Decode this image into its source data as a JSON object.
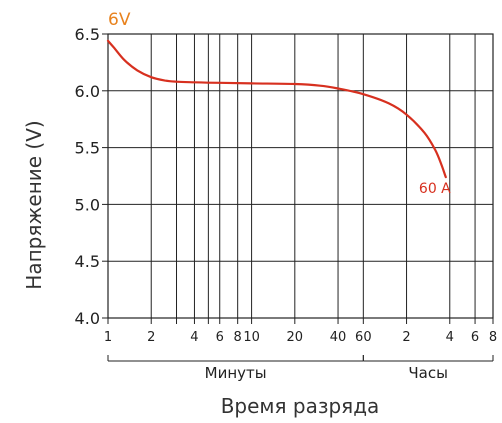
{
  "chart_data": {
    "type": "line",
    "title": "6V",
    "xlabel": "Время разряда",
    "ylabel": "Напряжение (V)",
    "ylim": [
      4.0,
      6.5
    ],
    "yticks": [
      "4.0",
      "4.5",
      "5.0",
      "5.5",
      "6.0",
      "6.5"
    ],
    "xticks": [
      {
        "label": "1",
        "minutes": 1
      },
      {
        "label": "2",
        "minutes": 2
      },
      {
        "label": "4",
        "minutes": 4
      },
      {
        "label": "6",
        "minutes": 6
      },
      {
        "label": "8",
        "minutes": 8
      },
      {
        "label": "10",
        "minutes": 10
      },
      {
        "label": "20",
        "minutes": 20
      },
      {
        "label": "40",
        "minutes": 40
      },
      {
        "label": "60",
        "minutes": 60
      },
      {
        "label": "2",
        "minutes": 120
      },
      {
        "label": "4",
        "minutes": 240
      },
      {
        "label": "6",
        "minutes": 360
      },
      {
        "label": "8",
        "minutes": 480
      }
    ],
    "extra_vlines_minutes": [
      3,
      5
    ],
    "groups": [
      {
        "label": "Минуты",
        "from_minutes": 1,
        "to_minutes": 60
      },
      {
        "label": "Часы",
        "from_minutes": 60,
        "to_minutes": 480
      }
    ],
    "grid": true,
    "series": [
      {
        "name": "60 A",
        "color": "#d7301f",
        "points": [
          {
            "x": 1.0,
            "y": 6.44
          },
          {
            "x": 1.1,
            "y": 6.38
          },
          {
            "x": 1.3,
            "y": 6.27
          },
          {
            "x": 1.6,
            "y": 6.18
          },
          {
            "x": 2.0,
            "y": 6.12
          },
          {
            "x": 2.5,
            "y": 6.09
          },
          {
            "x": 3.0,
            "y": 6.08
          },
          {
            "x": 4.0,
            "y": 6.075
          },
          {
            "x": 6.0,
            "y": 6.07
          },
          {
            "x": 10.0,
            "y": 6.065
          },
          {
            "x": 20.0,
            "y": 6.06
          },
          {
            "x": 30.0,
            "y": 6.045
          },
          {
            "x": 40.0,
            "y": 6.02
          },
          {
            "x": 60.0,
            "y": 5.97
          },
          {
            "x": 90.0,
            "y": 5.89
          },
          {
            "x": 120.0,
            "y": 5.79
          },
          {
            "x": 160.0,
            "y": 5.63
          },
          {
            "x": 190.0,
            "y": 5.48
          },
          {
            "x": 210.0,
            "y": 5.35
          },
          {
            "x": 225.0,
            "y": 5.24
          }
        ]
      }
    ],
    "colors": {
      "title": "#e8821e",
      "series": "#d7301f"
    }
  }
}
